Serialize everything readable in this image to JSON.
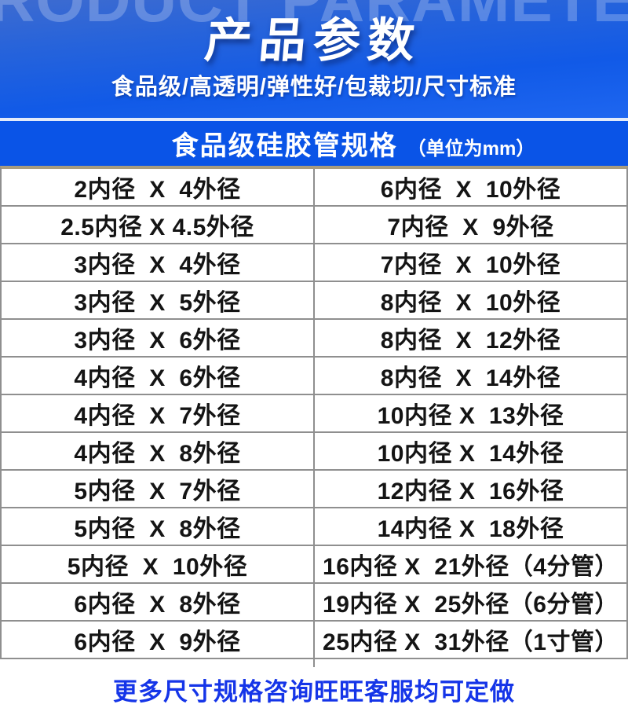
{
  "header": {
    "watermark": "PRODUCT PARAMETER",
    "title": "产品参数",
    "subtitle": "食品级/高透明/弹性好/包裁切/尺寸标准"
  },
  "spec_table": {
    "title": "食品级硅胶管规格",
    "unit_note": "（单位为mm）",
    "rows": [
      {
        "left": "2内径  X  4外径",
        "right": "6内径  X  10外径"
      },
      {
        "left": "2.5内径 X 4.5外径",
        "right": "7内径  X  9外径"
      },
      {
        "left": "3内径  X  4外径",
        "right": "7内径  X  10外径"
      },
      {
        "left": "3内径  X  5外径",
        "right": "8内径  X  10外径"
      },
      {
        "left": "3内径  X  6外径",
        "right": "8内径  X  12外径"
      },
      {
        "left": "4内径  X  6外径",
        "right": "8内径  X  14外径"
      },
      {
        "left": "4内径  X  7外径",
        "right": "10内径 X  13外径"
      },
      {
        "left": "4内径  X  8外径",
        "right": "10内径 X  14外径"
      },
      {
        "left": "5内径  X  7外径",
        "right": "12内径 X  16外径"
      },
      {
        "left": "5内径  X  8外径",
        "right": "14内径 X  18外径"
      },
      {
        "left": "5内径  X  10外径",
        "right": "16内径 X  21外径（4分管）"
      },
      {
        "left": "6内径  X  8外径",
        "right": "19内径 X  25外径（6分管）"
      },
      {
        "left": "6内径  X  9外径",
        "right": "25内径 X  31外径（1寸管）"
      }
    ]
  },
  "footer": {
    "note": "更多尺寸规格咨询旺旺客服均可定做"
  },
  "colors": {
    "header_gradient_top": "#3d6bd0",
    "header_gradient_bottom": "#1e66f0",
    "watermark_text": "#6e93e0",
    "band_blue": "#0a54e7",
    "footer_text_blue": "#1535e8",
    "table_border_gray": "#8f8f8f",
    "table_top_border_tan": "#a99d80",
    "cell_text": "#141414",
    "header_text": "#ffffff"
  }
}
